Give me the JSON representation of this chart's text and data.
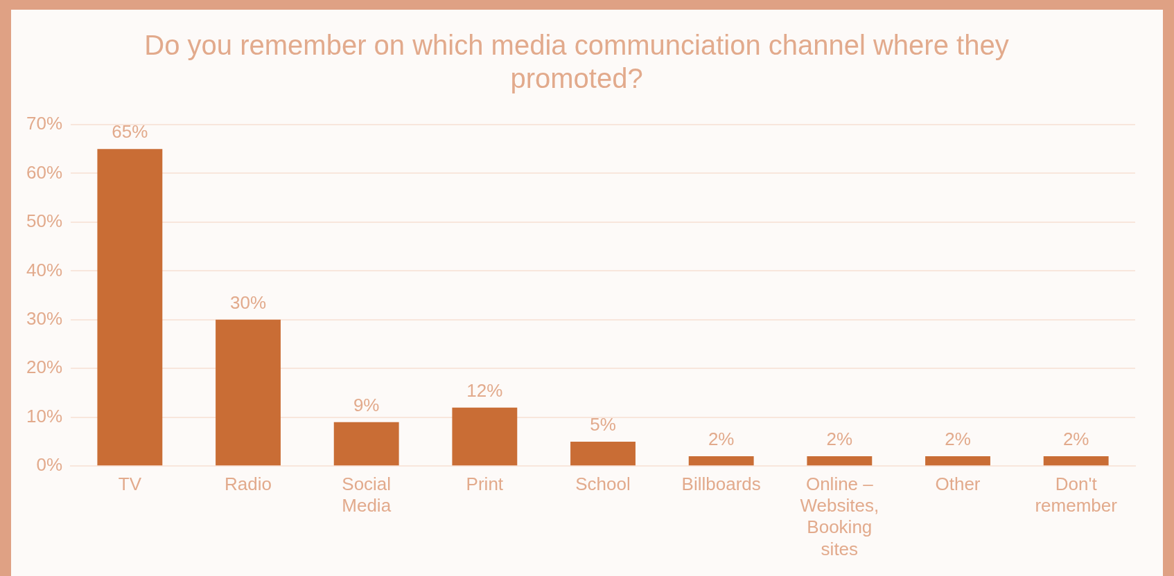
{
  "chart_data": {
    "type": "bar",
    "title": "Do you remember on which media communciation channel where they promoted?",
    "categories": [
      "TV",
      "Radio",
      "Social Media",
      "Print",
      "School",
      "Billboards",
      "Online – Websites, Booking sites",
      "Other",
      "Don't remember"
    ],
    "values": [
      65,
      30,
      9,
      12,
      5,
      2,
      2,
      2,
      2
    ],
    "value_labels": [
      "65%",
      "30%",
      "9%",
      "12%",
      "5%",
      "2%",
      "2%",
      "2%",
      "2%"
    ],
    "color": "#c96d35",
    "ylim": [
      0,
      70
    ],
    "yticks": [
      {
        "value": 0,
        "label": "0%"
      },
      {
        "value": 10,
        "label": "10%"
      },
      {
        "value": 20,
        "label": "20%"
      },
      {
        "value": 30,
        "label": "30%"
      },
      {
        "value": 40,
        "label": "40%"
      },
      {
        "value": 50,
        "label": "50%"
      },
      {
        "value": 60,
        "label": "60%"
      },
      {
        "value": 70,
        "label": "70%"
      }
    ],
    "grid": "y"
  }
}
